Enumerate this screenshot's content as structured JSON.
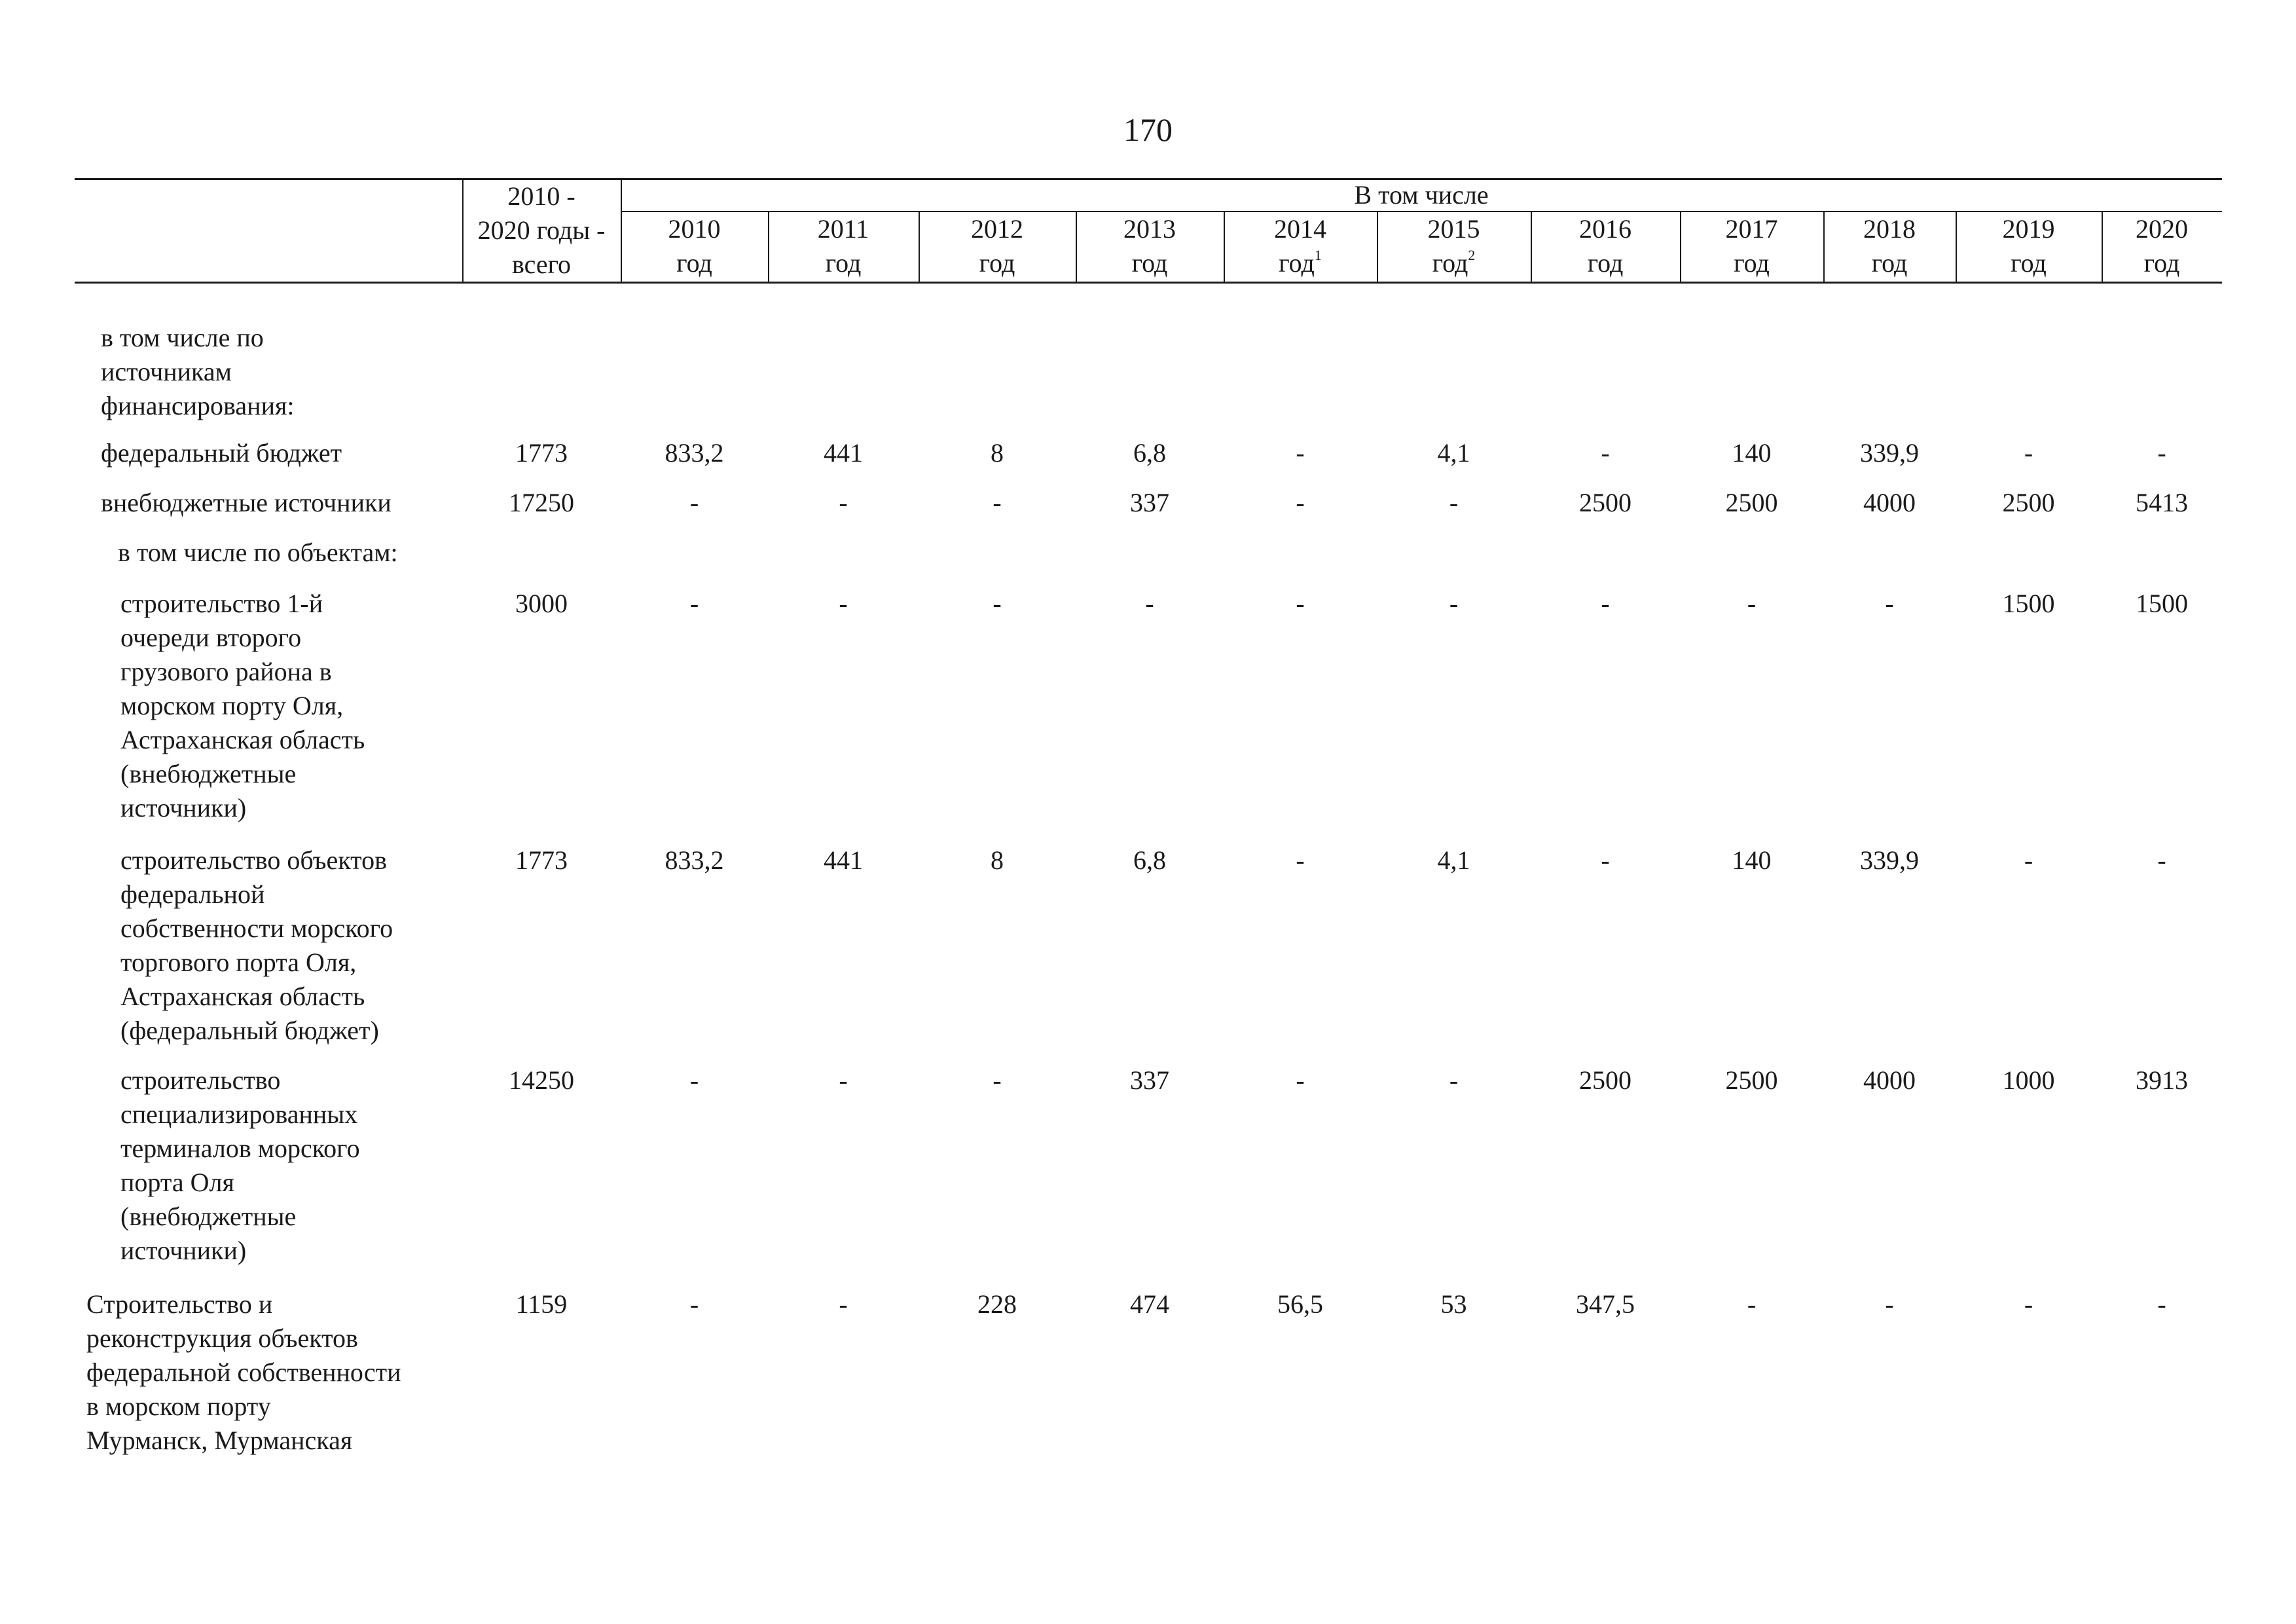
{
  "page_number": "170",
  "header": {
    "total_line1": "2010 -",
    "total_line2": "2020 годы -",
    "total_line3": "всего",
    "group_label": "В том числе",
    "years": [
      {
        "year": "2010",
        "unit": "год",
        "sup": ""
      },
      {
        "year": "2011",
        "unit": "год",
        "sup": ""
      },
      {
        "year": "2012",
        "unit": "год",
        "sup": ""
      },
      {
        "year": "2013",
        "unit": "год",
        "sup": ""
      },
      {
        "year": "2014",
        "unit": "год",
        "sup": "1"
      },
      {
        "year": "2015",
        "unit": "год",
        "sup": "2"
      },
      {
        "year": "2016",
        "unit": "год",
        "sup": ""
      },
      {
        "year": "2017",
        "unit": "год",
        "sup": ""
      },
      {
        "year": "2018",
        "unit": "год",
        "sup": ""
      },
      {
        "year": "2019",
        "unit": "год",
        "sup": ""
      },
      {
        "year": "2020",
        "unit": "год",
        "sup": ""
      }
    ]
  },
  "rows": [
    {
      "label": [
        "в том числе по",
        "источникам",
        "финансирования:"
      ],
      "values": []
    },
    {
      "label": [
        "федеральный бюджет"
      ],
      "values": [
        "1773",
        "833,2",
        "441",
        "8",
        "6,8",
        "-",
        "4,1",
        "-",
        "140",
        "339,9",
        "-",
        "-"
      ]
    },
    {
      "label": [
        "внебюджетные источники"
      ],
      "values": [
        "17250",
        "-",
        "-",
        "-",
        "337",
        "-",
        "-",
        "2500",
        "2500",
        "4000",
        "2500",
        "5413"
      ]
    },
    {
      "label": [
        "в том числе по объектам:"
      ],
      "values": []
    },
    {
      "label": [
        "строительство 1-й",
        "очереди второго",
        "грузового района в",
        "морском порту Оля,",
        "Астраханская область",
        "(внебюджетные",
        "источники)"
      ],
      "values": [
        "3000",
        "-",
        "-",
        "-",
        "-",
        "-",
        "-",
        "-",
        "-",
        "-",
        "1500",
        "1500"
      ]
    },
    {
      "label": [
        "строительство объектов",
        "федеральной",
        "собственности морского",
        "торгового порта Оля,",
        "Астраханская область",
        "(федеральный бюджет)"
      ],
      "values": [
        "1773",
        "833,2",
        "441",
        "8",
        "6,8",
        "-",
        "4,1",
        "-",
        "140",
        "339,9",
        "-",
        "-"
      ]
    },
    {
      "label": [
        "строительство",
        "специализированных",
        "терминалов морского",
        "порта Оля",
        "(внебюджетные",
        "источники)"
      ],
      "values": [
        "14250",
        "-",
        "-",
        "-",
        "337",
        "-",
        "-",
        "2500",
        "2500",
        "4000",
        "1000",
        "3913"
      ]
    },
    {
      "label": [
        "Строительство и",
        "реконструкция объектов",
        "федеральной собственности",
        "в морском порту",
        "Мурманск, Мурманская"
      ],
      "values": [
        "1159",
        "-",
        "-",
        "228",
        "474",
        "56,5",
        "53",
        "347,5",
        "-",
        "-",
        "-",
        "-"
      ]
    }
  ]
}
